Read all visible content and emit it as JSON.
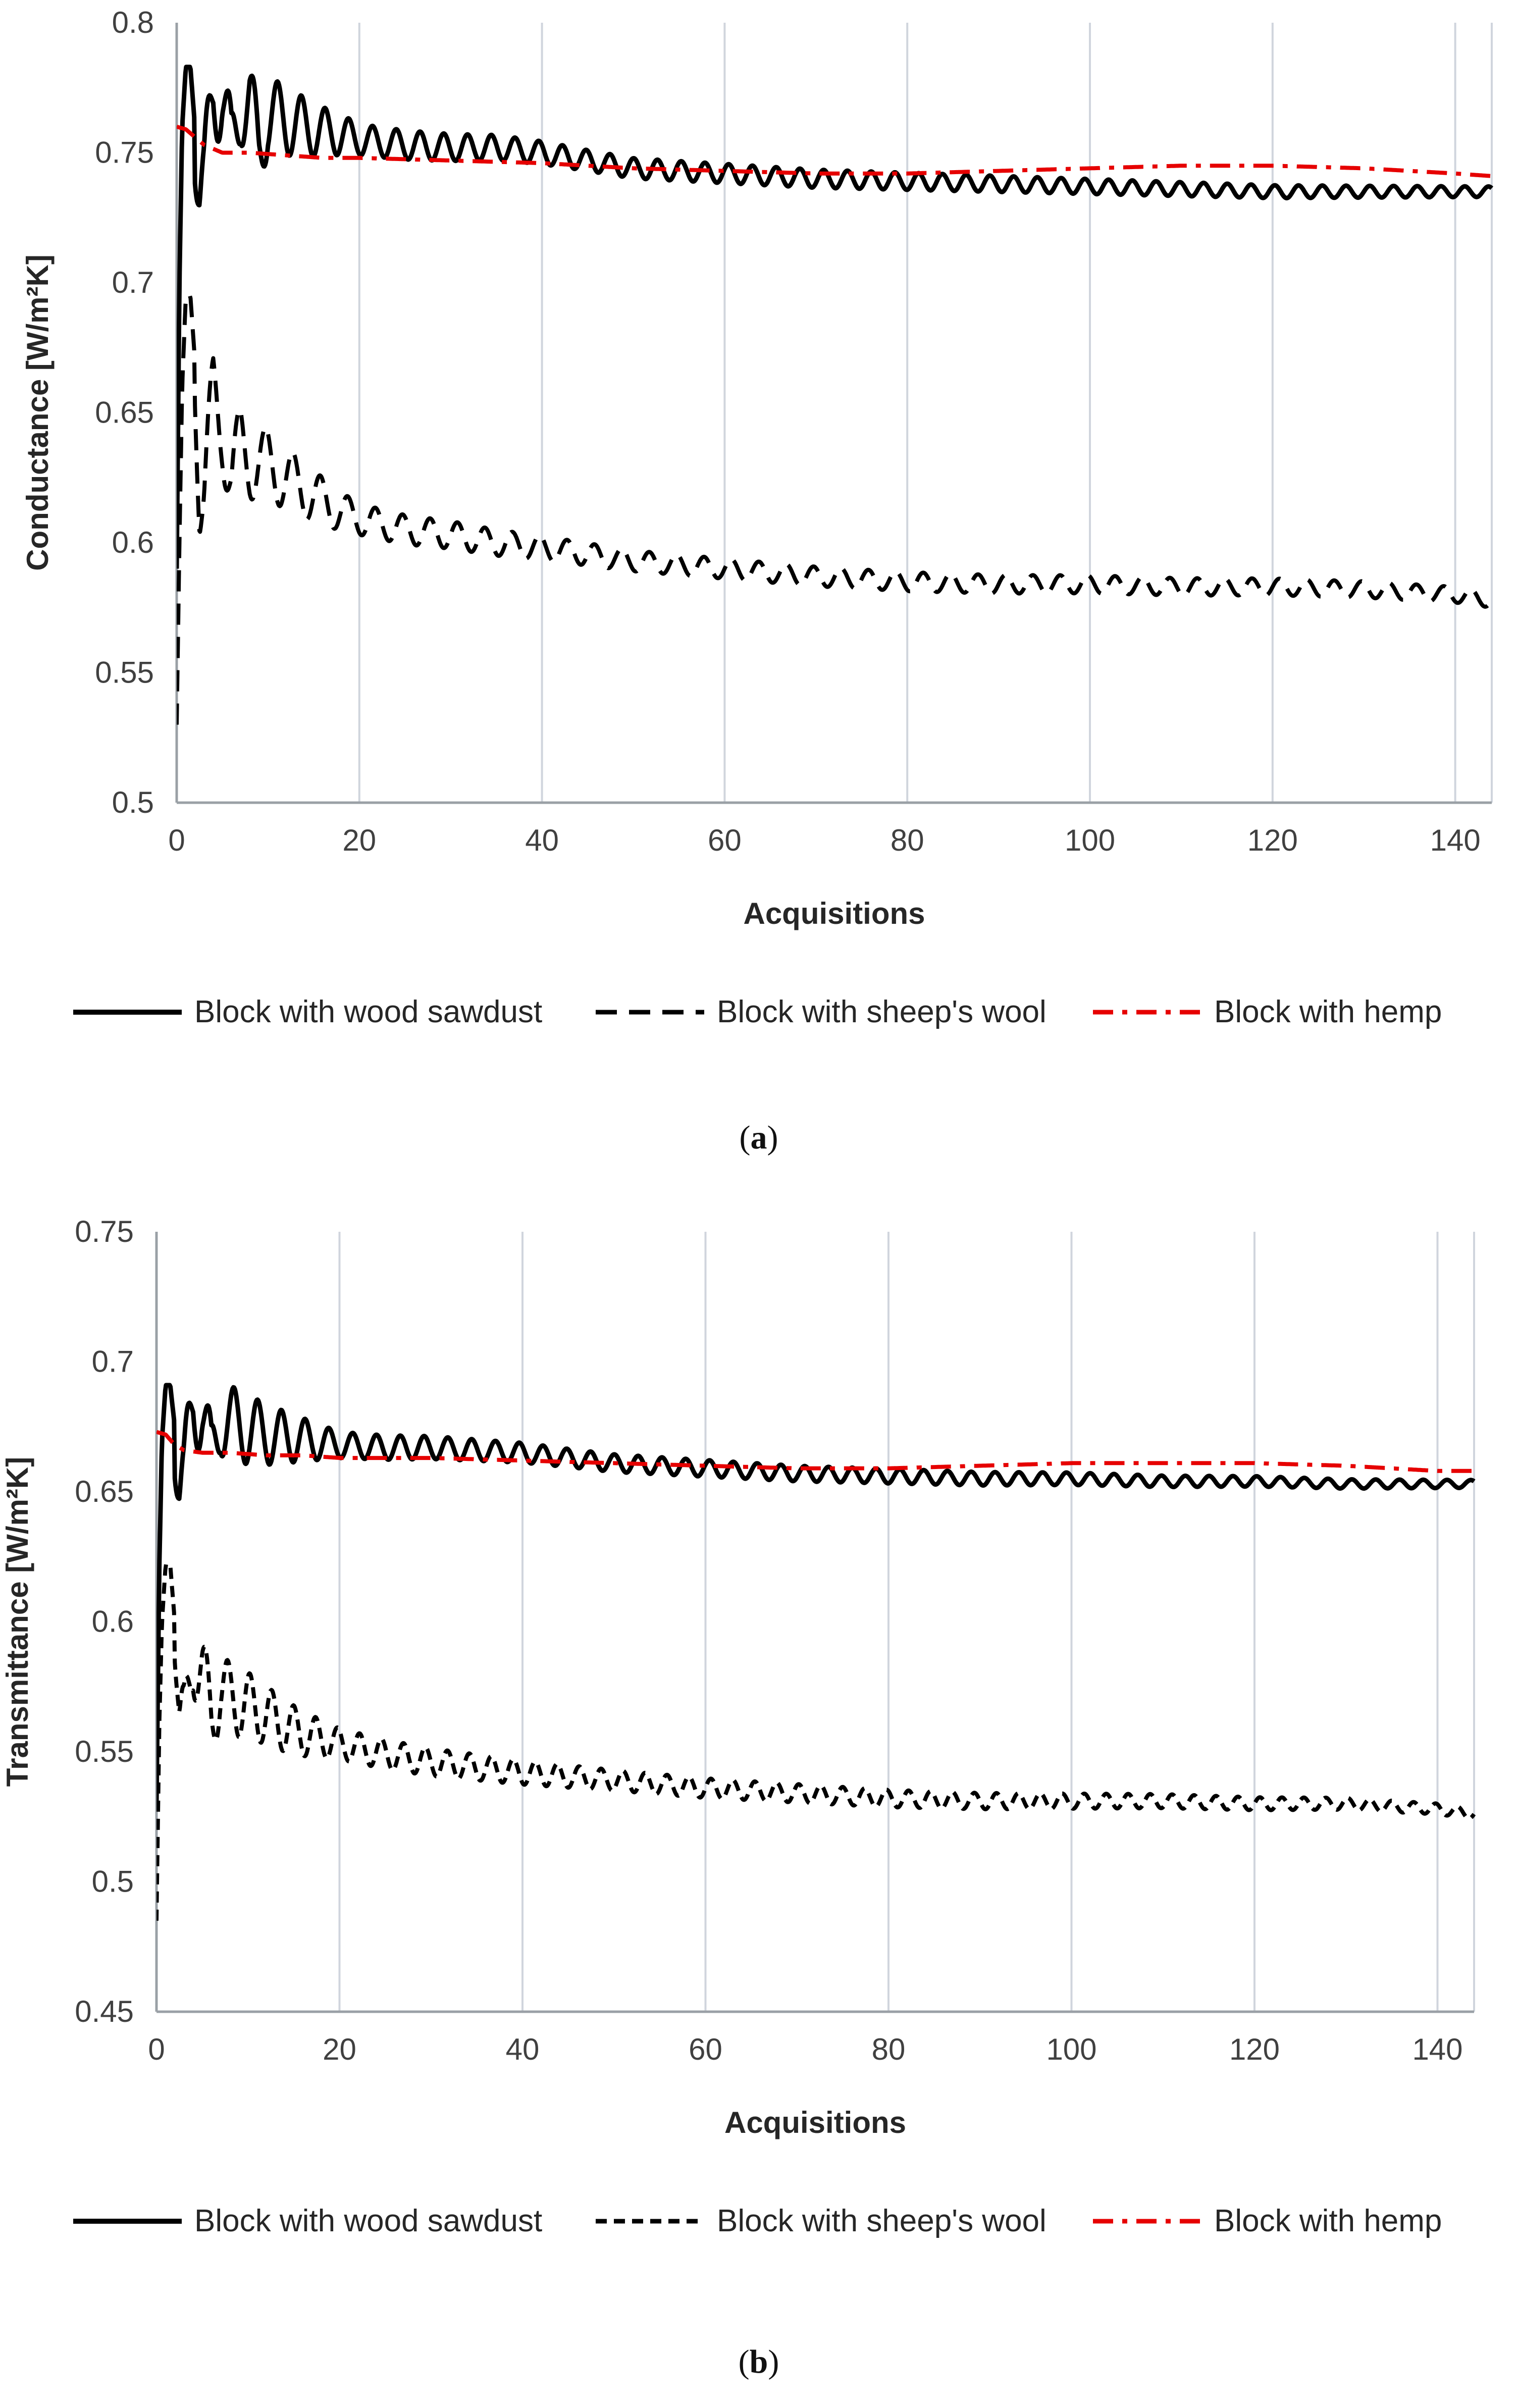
{
  "colors": {
    "wood": "#000000",
    "wool": "#000000",
    "hemp": "#e60000",
    "grid": "#d0d5dd",
    "axis": "#9aa0a6"
  },
  "chart_data": [
    {
      "panel": "a",
      "caption_label": "a",
      "type": "line",
      "title": "",
      "xlabel": "Acquisitions",
      "ylabel": "Conductance [W/m²K]",
      "xlim": [
        0,
        144
      ],
      "ylim": [
        0.5,
        0.8
      ],
      "xticks": [
        0,
        20,
        40,
        60,
        80,
        100,
        120,
        140
      ],
      "xtick_labels": [
        "0",
        "20",
        "40",
        "60",
        "80",
        "100",
        "120",
        "140"
      ],
      "yticks": [
        0.5,
        0.55,
        0.6,
        0.65,
        0.7,
        0.75,
        0.8
      ],
      "ytick_labels": [
        "0.5",
        "0.55",
        "0.6",
        "0.65",
        "0.7",
        "0.75",
        "0.8"
      ],
      "grid": "vertical",
      "legend_position": "bottom",
      "series": [
        {
          "name": "Block with wood sawdust",
          "style": "solid",
          "color": "#000000",
          "x": [
            0,
            0.3,
            0.6,
            1,
            1.5,
            2,
            2.5,
            3,
            4,
            5,
            6,
            7,
            8,
            9,
            10,
            12,
            14,
            16,
            18,
            20,
            25,
            30,
            35,
            40,
            45,
            50,
            60,
            70,
            80,
            90,
            100,
            110,
            120,
            130,
            140,
            144
          ],
          "y": [
            0.59,
            0.7,
            0.76,
            0.783,
            0.783,
            0.76,
            0.735,
            0.735,
            0.774,
            0.774,
            0.748,
            0.77,
            0.77,
            0.75,
            0.765,
            0.762,
            0.76,
            0.758,
            0.757,
            0.755,
            0.753,
            0.752,
            0.752,
            0.75,
            0.747,
            0.744,
            0.742,
            0.74,
            0.739,
            0.738,
            0.737,
            0.736,
            0.735,
            0.735,
            0.735,
            0.735
          ],
          "oscillation": {
            "period": 2.6,
            "amplitude": [
              0.022,
              0.006,
              0.004,
              0.002
            ],
            "decay_at": [
              2,
              20,
              45,
              144
            ]
          }
        },
        {
          "name": "Block with sheep's wool",
          "style": "dashed",
          "color": "#000000",
          "x": [
            0,
            0.3,
            0.6,
            1,
            1.5,
            2,
            2.5,
            3,
            4,
            5,
            6,
            7,
            8,
            10,
            12,
            14,
            16,
            18,
            20,
            25,
            30,
            35,
            40,
            50,
            60,
            70,
            80,
            90,
            100,
            110,
            120,
            130,
            140,
            144
          ],
          "y": [
            0.53,
            0.6,
            0.66,
            0.695,
            0.695,
            0.67,
            0.62,
            0.618,
            0.655,
            0.645,
            0.625,
            0.637,
            0.632,
            0.63,
            0.625,
            0.62,
            0.616,
            0.612,
            0.609,
            0.605,
            0.603,
            0.6,
            0.598,
            0.593,
            0.59,
            0.587,
            0.585,
            0.584,
            0.584,
            0.583,
            0.583,
            0.582,
            0.58,
            0.578
          ],
          "oscillation": {
            "period": 3.0,
            "amplitude": [
              0.02,
              0.006,
              0.004,
              0.003
            ],
            "decay_at": [
              2,
              20,
              50,
              144
            ]
          }
        },
        {
          "name": "Block with hemp",
          "style": "dashdot",
          "color": "#e60000",
          "x": [
            0,
            1,
            2,
            3,
            5,
            8,
            12,
            16,
            20,
            30,
            40,
            50,
            60,
            70,
            80,
            90,
            100,
            110,
            120,
            130,
            140,
            144
          ],
          "y": [
            0.76,
            0.759,
            0.756,
            0.753,
            0.75,
            0.75,
            0.749,
            0.748,
            0.748,
            0.747,
            0.746,
            0.744,
            0.743,
            0.742,
            0.742,
            0.743,
            0.744,
            0.745,
            0.745,
            0.744,
            0.742,
            0.741
          ]
        }
      ]
    },
    {
      "panel": "b",
      "caption_label": "b",
      "type": "line",
      "title": "",
      "xlabel": "Acquisitions",
      "ylabel": "Transmittance [W/m²K]",
      "xlim": [
        0,
        144
      ],
      "ylim": [
        0.45,
        0.75
      ],
      "xticks": [
        0,
        20,
        40,
        60,
        80,
        100,
        120,
        140
      ],
      "xtick_labels": [
        "0",
        "20",
        "40",
        "60",
        "80",
        "100",
        "120",
        "140"
      ],
      "yticks": [
        0.45,
        0.5,
        0.55,
        0.6,
        0.65,
        0.7,
        0.75
      ],
      "ytick_labels": [
        "0.45",
        "0.5",
        "0.55",
        "0.6",
        "0.65",
        "0.7",
        "0.75"
      ],
      "grid": "vertical",
      "legend_position": "bottom",
      "series": [
        {
          "name": "Block with wood sawdust",
          "style": "solid",
          "color": "#000000",
          "x": [
            0,
            0.3,
            0.6,
            1,
            1.5,
            2,
            2.5,
            3,
            4,
            5,
            6,
            7,
            8,
            10,
            12,
            14,
            16,
            18,
            20,
            25,
            30,
            35,
            40,
            45,
            50,
            60,
            70,
            80,
            90,
            100,
            110,
            120,
            130,
            140,
            144
          ],
          "y": [
            0.53,
            0.62,
            0.67,
            0.691,
            0.691,
            0.675,
            0.652,
            0.652,
            0.685,
            0.683,
            0.66,
            0.68,
            0.676,
            0.674,
            0.672,
            0.671,
            0.67,
            0.669,
            0.668,
            0.667,
            0.667,
            0.666,
            0.665,
            0.663,
            0.661,
            0.659,
            0.657,
            0.656,
            0.655,
            0.655,
            0.654,
            0.654,
            0.653,
            0.653,
            0.653
          ],
          "oscillation": {
            "period": 2.6,
            "amplitude": [
              0.02,
              0.005,
              0.0035,
              0.0015
            ],
            "decay_at": [
              2,
              20,
              45,
              144
            ]
          }
        },
        {
          "name": "Block with sheep's wool",
          "style": "dashed-short",
          "color": "#000000",
          "x": [
            0,
            0.3,
            0.6,
            1,
            1.5,
            2,
            2.5,
            3,
            4,
            5,
            6,
            7,
            8,
            10,
            12,
            14,
            16,
            18,
            20,
            25,
            30,
            35,
            40,
            50,
            60,
            70,
            80,
            90,
            100,
            110,
            120,
            130,
            140,
            144
          ],
          "y": [
            0.485,
            0.56,
            0.6,
            0.622,
            0.622,
            0.6,
            0.56,
            0.558,
            0.588,
            0.58,
            0.563,
            0.575,
            0.57,
            0.568,
            0.564,
            0.56,
            0.557,
            0.555,
            0.553,
            0.549,
            0.546,
            0.544,
            0.542,
            0.539,
            0.536,
            0.534,
            0.532,
            0.531,
            0.531,
            0.531,
            0.53,
            0.53,
            0.528,
            0.526
          ],
          "oscillation": {
            "period": 2.4,
            "amplitude": [
              0.018,
              0.006,
              0.004,
              0.002
            ],
            "decay_at": [
              2,
              20,
              50,
              144
            ]
          }
        },
        {
          "name": "Block with hemp",
          "style": "dashdot",
          "color": "#e60000",
          "x": [
            0,
            1,
            2,
            3,
            5,
            8,
            12,
            16,
            20,
            30,
            40,
            50,
            60,
            70,
            80,
            90,
            100,
            110,
            120,
            130,
            140,
            144
          ],
          "y": [
            0.673,
            0.672,
            0.668,
            0.666,
            0.665,
            0.665,
            0.664,
            0.664,
            0.663,
            0.663,
            0.662,
            0.661,
            0.66,
            0.659,
            0.659,
            0.66,
            0.661,
            0.661,
            0.661,
            0.66,
            0.658,
            0.658
          ]
        }
      ]
    }
  ]
}
